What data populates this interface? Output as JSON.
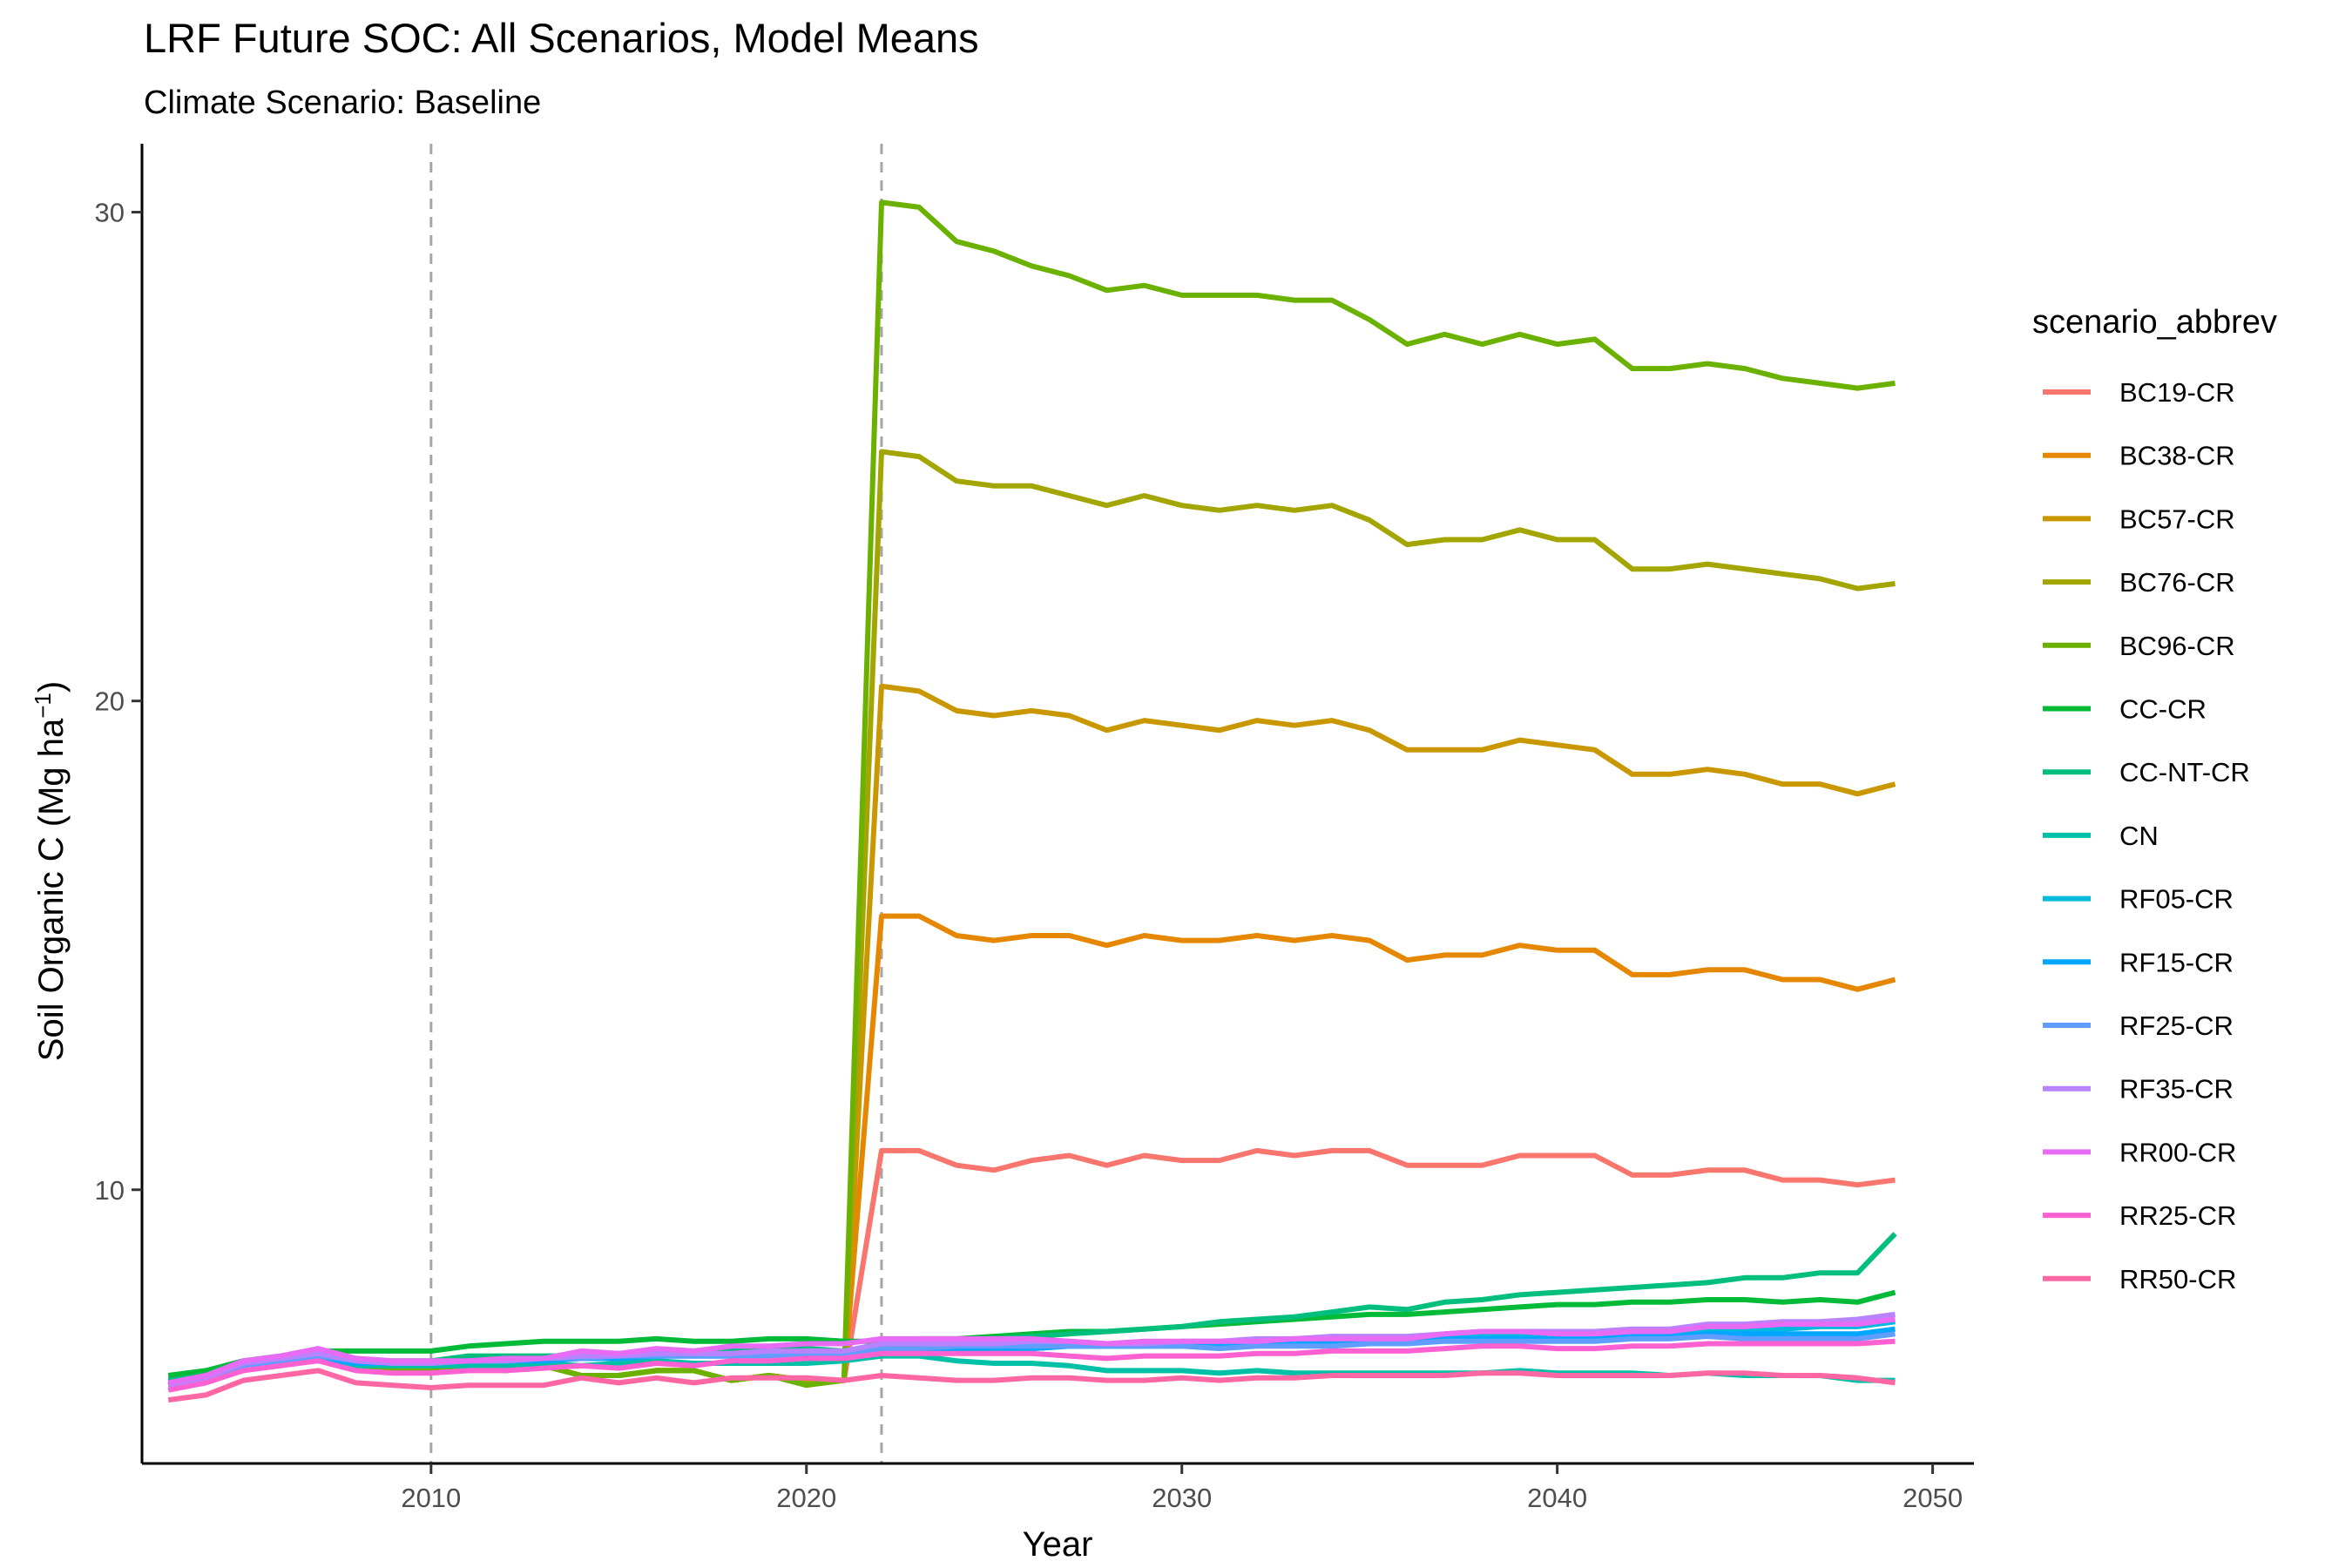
{
  "chart_data": {
    "type": "line",
    "title": "LRF  Future SOC: All Scenarios, Model Means",
    "subtitle": "Climate Scenario: Baseline",
    "xlabel": "Year",
    "ylabel": "Soil Organic C (Mg ha",
    "ylabel_unit_sup": "−1",
    "ylabel_close": ")",
    "xlim": [
      2002.3,
      2051.1
    ],
    "ylim": [
      4.4,
      31.4
    ],
    "x_ticks": [
      2010,
      2020,
      2030,
      2040,
      2050
    ],
    "y_ticks": [
      10,
      20,
      30
    ],
    "vlines": [
      2010,
      2022
    ],
    "grid": false,
    "legend": {
      "title": "scenario_abbrev",
      "position": "right"
    },
    "x": [
      2003,
      2004,
      2005,
      2006,
      2007,
      2008,
      2009,
      2010,
      2011,
      2012,
      2013,
      2014,
      2015,
      2016,
      2017,
      2018,
      2019,
      2020,
      2021,
      2022,
      2023,
      2024,
      2025,
      2026,
      2027,
      2028,
      2029,
      2030,
      2031,
      2032,
      2033,
      2034,
      2035,
      2036,
      2037,
      2038,
      2039,
      2040,
      2041,
      2042,
      2043,
      2044,
      2045,
      2046,
      2047,
      2048,
      2049
    ],
    "series": [
      {
        "name": "BC19-CR",
        "color": "#F8766D",
        "values": [
          6.0,
          6.1,
          6.4,
          6.5,
          6.6,
          6.4,
          6.3,
          6.3,
          6.4,
          6.3,
          6.4,
          6.2,
          6.2,
          6.3,
          6.3,
          6.1,
          6.2,
          6.1,
          6.1,
          10.8,
          10.8,
          10.5,
          10.4,
          10.6,
          10.7,
          10.5,
          10.7,
          10.6,
          10.6,
          10.8,
          10.7,
          10.8,
          10.8,
          10.5,
          10.5,
          10.5,
          10.7,
          10.7,
          10.7,
          10.3,
          10.3,
          10.4,
          10.4,
          10.2,
          10.2,
          10.1,
          10.2
        ]
      },
      {
        "name": "BC38-CR",
        "color": "#E58700",
        "values": [
          6.0,
          6.1,
          6.4,
          6.5,
          6.6,
          6.4,
          6.3,
          6.3,
          6.4,
          6.3,
          6.4,
          6.2,
          6.2,
          6.3,
          6.3,
          6.1,
          6.2,
          6.1,
          6.1,
          15.6,
          15.6,
          15.2,
          15.1,
          15.2,
          15.2,
          15.0,
          15.2,
          15.1,
          15.1,
          15.2,
          15.1,
          15.2,
          15.1,
          14.7,
          14.8,
          14.8,
          15.0,
          14.9,
          14.9,
          14.4,
          14.4,
          14.5,
          14.5,
          14.3,
          14.3,
          14.1,
          14.3
        ]
      },
      {
        "name": "BC57-CR",
        "color": "#C99800",
        "values": [
          6.0,
          6.1,
          6.4,
          6.5,
          6.6,
          6.4,
          6.3,
          6.3,
          6.4,
          6.3,
          6.4,
          6.2,
          6.2,
          6.3,
          6.3,
          6.1,
          6.2,
          6.1,
          6.1,
          20.3,
          20.2,
          19.8,
          19.7,
          19.8,
          19.7,
          19.4,
          19.6,
          19.5,
          19.4,
          19.6,
          19.5,
          19.6,
          19.4,
          19.0,
          19.0,
          19.0,
          19.2,
          19.1,
          19.0,
          18.5,
          18.5,
          18.6,
          18.5,
          18.3,
          18.3,
          18.1,
          18.3
        ]
      },
      {
        "name": "BC76-CR",
        "color": "#A3A500",
        "values": [
          6.0,
          6.1,
          6.4,
          6.5,
          6.6,
          6.4,
          6.3,
          6.3,
          6.4,
          6.3,
          6.4,
          6.2,
          6.2,
          6.3,
          6.3,
          6.1,
          6.2,
          6.1,
          6.1,
          25.1,
          25.0,
          24.5,
          24.4,
          24.4,
          24.2,
          24.0,
          24.2,
          24.0,
          23.9,
          24.0,
          23.9,
          24.0,
          23.7,
          23.2,
          23.3,
          23.3,
          23.5,
          23.3,
          23.3,
          22.7,
          22.7,
          22.8,
          22.7,
          22.6,
          22.5,
          22.3,
          22.4
        ]
      },
      {
        "name": "BC96-CR",
        "color": "#6BB100",
        "values": [
          6.0,
          6.1,
          6.4,
          6.5,
          6.6,
          6.4,
          6.3,
          6.3,
          6.4,
          6.3,
          6.4,
          6.2,
          6.2,
          6.3,
          6.3,
          6.1,
          6.2,
          6.0,
          6.1,
          30.2,
          30.1,
          29.4,
          29.2,
          28.9,
          28.7,
          28.4,
          28.5,
          28.3,
          28.3,
          28.3,
          28.2,
          28.2,
          27.8,
          27.3,
          27.5,
          27.3,
          27.5,
          27.3,
          27.4,
          26.8,
          26.8,
          26.9,
          26.8,
          26.6,
          26.5,
          26.4,
          26.5
        ]
      },
      {
        "name": "CC-CR",
        "color": "#00BA38",
        "values": [
          6.2,
          6.3,
          6.5,
          6.6,
          6.7,
          6.7,
          6.7,
          6.7,
          6.8,
          6.85,
          6.9,
          6.9,
          6.9,
          6.95,
          6.9,
          6.9,
          6.95,
          6.95,
          6.9,
          6.9,
          6.95,
          6.95,
          7.0,
          7.05,
          7.1,
          7.1,
          7.15,
          7.2,
          7.25,
          7.3,
          7.35,
          7.4,
          7.45,
          7.45,
          7.5,
          7.55,
          7.6,
          7.65,
          7.65,
          7.7,
          7.7,
          7.75,
          7.75,
          7.7,
          7.75,
          7.7,
          7.9
        ]
      },
      {
        "name": "CC-NT-CR",
        "color": "#00BF7D",
        "values": [
          6.1,
          6.2,
          6.4,
          6.5,
          6.6,
          6.5,
          6.5,
          6.5,
          6.6,
          6.6,
          6.6,
          6.6,
          6.65,
          6.7,
          6.7,
          6.7,
          6.7,
          6.75,
          6.7,
          6.8,
          6.85,
          6.9,
          6.95,
          7.0,
          7.05,
          7.1,
          7.15,
          7.2,
          7.3,
          7.35,
          7.4,
          7.5,
          7.6,
          7.55,
          7.7,
          7.75,
          7.85,
          7.9,
          7.95,
          8.0,
          8.05,
          8.1,
          8.2,
          8.2,
          8.3,
          8.3,
          9.1
        ]
      },
      {
        "name": "CN",
        "color": "#00C1A7",
        "values": [
          6.0,
          6.1,
          6.35,
          6.45,
          6.55,
          6.4,
          6.4,
          6.4,
          6.4,
          6.4,
          6.45,
          6.4,
          6.45,
          6.5,
          6.45,
          6.45,
          6.45,
          6.45,
          6.5,
          6.6,
          6.6,
          6.5,
          6.45,
          6.45,
          6.4,
          6.3,
          6.3,
          6.3,
          6.25,
          6.3,
          6.25,
          6.25,
          6.25,
          6.25,
          6.25,
          6.25,
          6.3,
          6.25,
          6.25,
          6.25,
          6.2,
          6.25,
          6.2,
          6.2,
          6.2,
          6.1,
          6.1
        ]
      },
      {
        "name": "RF05-CR",
        "color": "#00BADE",
        "values": [
          6.0,
          6.15,
          6.35,
          6.45,
          6.55,
          6.45,
          6.45,
          6.45,
          6.5,
          6.5,
          6.5,
          6.55,
          6.55,
          6.6,
          6.6,
          6.6,
          6.6,
          6.6,
          6.6,
          6.7,
          6.7,
          6.75,
          6.75,
          6.75,
          6.8,
          6.8,
          6.8,
          6.85,
          6.85,
          6.9,
          6.9,
          6.9,
          6.95,
          6.95,
          7.0,
          7.0,
          7.05,
          7.05,
          7.05,
          7.1,
          7.1,
          7.15,
          7.15,
          7.15,
          7.2,
          7.2,
          7.3
        ]
      },
      {
        "name": "RF15-CR",
        "color": "#00A6FF",
        "values": [
          6.0,
          6.15,
          6.35,
          6.45,
          6.55,
          6.45,
          6.45,
          6.45,
          6.5,
          6.5,
          6.5,
          6.55,
          6.55,
          6.6,
          6.6,
          6.6,
          6.6,
          6.6,
          6.6,
          6.7,
          6.7,
          6.75,
          6.75,
          6.75,
          6.8,
          6.8,
          6.8,
          6.8,
          6.8,
          6.85,
          6.85,
          6.85,
          6.9,
          6.9,
          6.95,
          6.95,
          6.95,
          6.95,
          6.95,
          7.0,
          7.0,
          7.05,
          7.05,
          7.05,
          7.05,
          7.05,
          7.15
        ]
      },
      {
        "name": "RF25-CR",
        "color": "#619CFF",
        "values": [
          6.0,
          6.15,
          6.4,
          6.5,
          6.6,
          6.5,
          6.45,
          6.45,
          6.5,
          6.5,
          6.55,
          6.55,
          6.6,
          6.6,
          6.6,
          6.6,
          6.6,
          6.65,
          6.65,
          6.75,
          6.75,
          6.8,
          6.8,
          6.8,
          6.8,
          6.8,
          6.8,
          6.8,
          6.75,
          6.8,
          6.8,
          6.8,
          6.85,
          6.85,
          6.9,
          6.9,
          6.9,
          6.9,
          6.9,
          6.95,
          6.95,
          7.0,
          6.95,
          6.95,
          6.95,
          6.95,
          7.05
        ]
      },
      {
        "name": "RF35-CR",
        "color": "#B983FF",
        "values": [
          6.0,
          6.15,
          6.45,
          6.55,
          6.65,
          6.5,
          6.45,
          6.45,
          6.5,
          6.5,
          6.55,
          6.6,
          6.6,
          6.65,
          6.65,
          6.65,
          6.7,
          6.7,
          6.7,
          6.85,
          6.85,
          6.85,
          6.85,
          6.9,
          6.9,
          6.85,
          6.85,
          6.9,
          6.9,
          6.95,
          6.95,
          7.0,
          7.0,
          7.0,
          7.05,
          7.1,
          7.1,
          7.1,
          7.1,
          7.15,
          7.15,
          7.25,
          7.25,
          7.3,
          7.3,
          7.35,
          7.45
        ]
      },
      {
        "name": "RR00-CR",
        "color": "#E76BF3",
        "values": [
          6.05,
          6.2,
          6.5,
          6.6,
          6.75,
          6.55,
          6.5,
          6.5,
          6.5,
          6.55,
          6.55,
          6.7,
          6.65,
          6.75,
          6.7,
          6.8,
          6.8,
          6.85,
          6.85,
          6.95,
          6.95,
          6.95,
          6.95,
          6.95,
          6.9,
          6.85,
          6.9,
          6.9,
          6.9,
          6.9,
          6.95,
          6.95,
          6.95,
          6.95,
          7.05,
          7.1,
          7.1,
          7.05,
          7.05,
          7.1,
          7.1,
          7.2,
          7.2,
          7.25,
          7.25,
          7.25,
          7.35
        ]
      },
      {
        "name": "RR25-CR",
        "color": "#FD61D1",
        "values": [
          5.9,
          6.05,
          6.3,
          6.4,
          6.5,
          6.3,
          6.25,
          6.25,
          6.3,
          6.3,
          6.35,
          6.4,
          6.35,
          6.45,
          6.4,
          6.5,
          6.5,
          6.55,
          6.55,
          6.65,
          6.65,
          6.65,
          6.65,
          6.65,
          6.6,
          6.55,
          6.6,
          6.6,
          6.6,
          6.65,
          6.65,
          6.7,
          6.7,
          6.7,
          6.75,
          6.8,
          6.8,
          6.75,
          6.75,
          6.8,
          6.8,
          6.85,
          6.85,
          6.85,
          6.85,
          6.85,
          6.9
        ]
      },
      {
        "name": "RR50-CR",
        "color": "#FF67A4",
        "values": [
          5.7,
          5.8,
          6.1,
          6.2,
          6.3,
          6.05,
          6.0,
          5.95,
          6.0,
          6.0,
          6.0,
          6.15,
          6.05,
          6.15,
          6.05,
          6.15,
          6.15,
          6.15,
          6.1,
          6.2,
          6.15,
          6.1,
          6.1,
          6.15,
          6.15,
          6.1,
          6.1,
          6.15,
          6.1,
          6.15,
          6.15,
          6.2,
          6.2,
          6.2,
          6.2,
          6.25,
          6.25,
          6.2,
          6.2,
          6.2,
          6.2,
          6.25,
          6.25,
          6.2,
          6.2,
          6.15,
          6.05
        ]
      }
    ]
  }
}
